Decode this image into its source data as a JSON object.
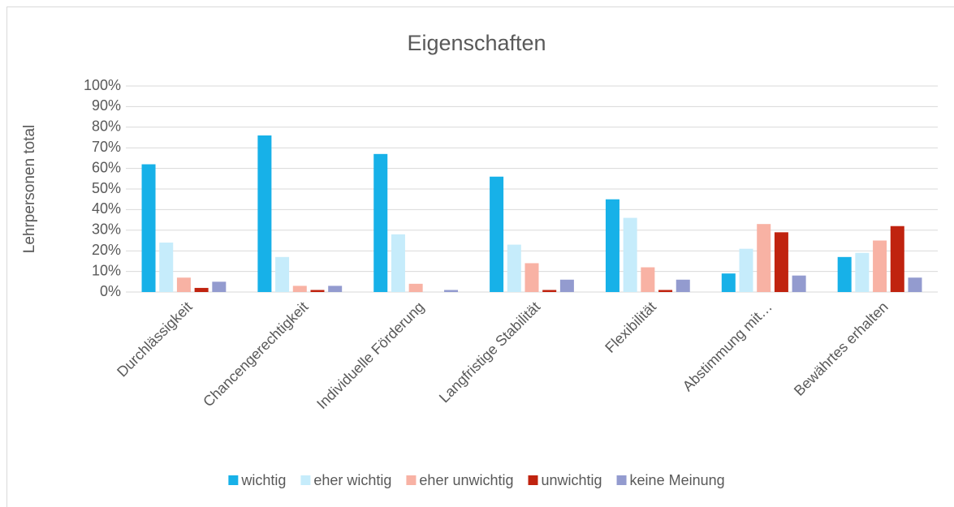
{
  "chart_data": {
    "type": "bar",
    "title": "Eigenschaften",
    "y_label": "Lehrpersonen total",
    "categories": [
      "Durchlässigkeit",
      "Chancengerechtigkeit",
      "Individuelle Förderung",
      "Langfristige Stabilität",
      "Flexibilität",
      "Abstimmung mit…",
      "Bewährtes erhalten"
    ],
    "series": [
      {
        "name": "wichtig",
        "color": "#17b1e8",
        "values": [
          62,
          76,
          67,
          56,
          45,
          9,
          17
        ]
      },
      {
        "name": "eher wichtig",
        "color": "#c6ecfb",
        "values": [
          24,
          17,
          28,
          23,
          36,
          21,
          19
        ]
      },
      {
        "name": "eher unwichtig",
        "color": "#f8b2a4",
        "values": [
          7,
          3,
          4,
          14,
          12,
          33,
          25
        ]
      },
      {
        "name": "unwichtig",
        "color": "#c0230f",
        "values": [
          2,
          1,
          0,
          1,
          1,
          29,
          32
        ]
      },
      {
        "name": "keine Meinung",
        "color": "#939bcf",
        "values": [
          5,
          3,
          1,
          6,
          6,
          8,
          7
        ]
      }
    ],
    "ylim": [
      0,
      100
    ],
    "yticks": [
      {
        "value": 0,
        "label": "0%"
      },
      {
        "value": 10,
        "label": "10%"
      },
      {
        "value": 20,
        "label": "20%"
      },
      {
        "value": 30,
        "label": "30%"
      },
      {
        "value": 40,
        "label": "40%"
      },
      {
        "value": 50,
        "label": "50%"
      },
      {
        "value": 60,
        "label": "60%"
      },
      {
        "value": 70,
        "label": "70%"
      },
      {
        "value": 80,
        "label": "80%"
      },
      {
        "value": 90,
        "label": "90%"
      },
      {
        "value": 100,
        "label": "100%"
      }
    ],
    "grid": true,
    "legend": "bottom"
  }
}
